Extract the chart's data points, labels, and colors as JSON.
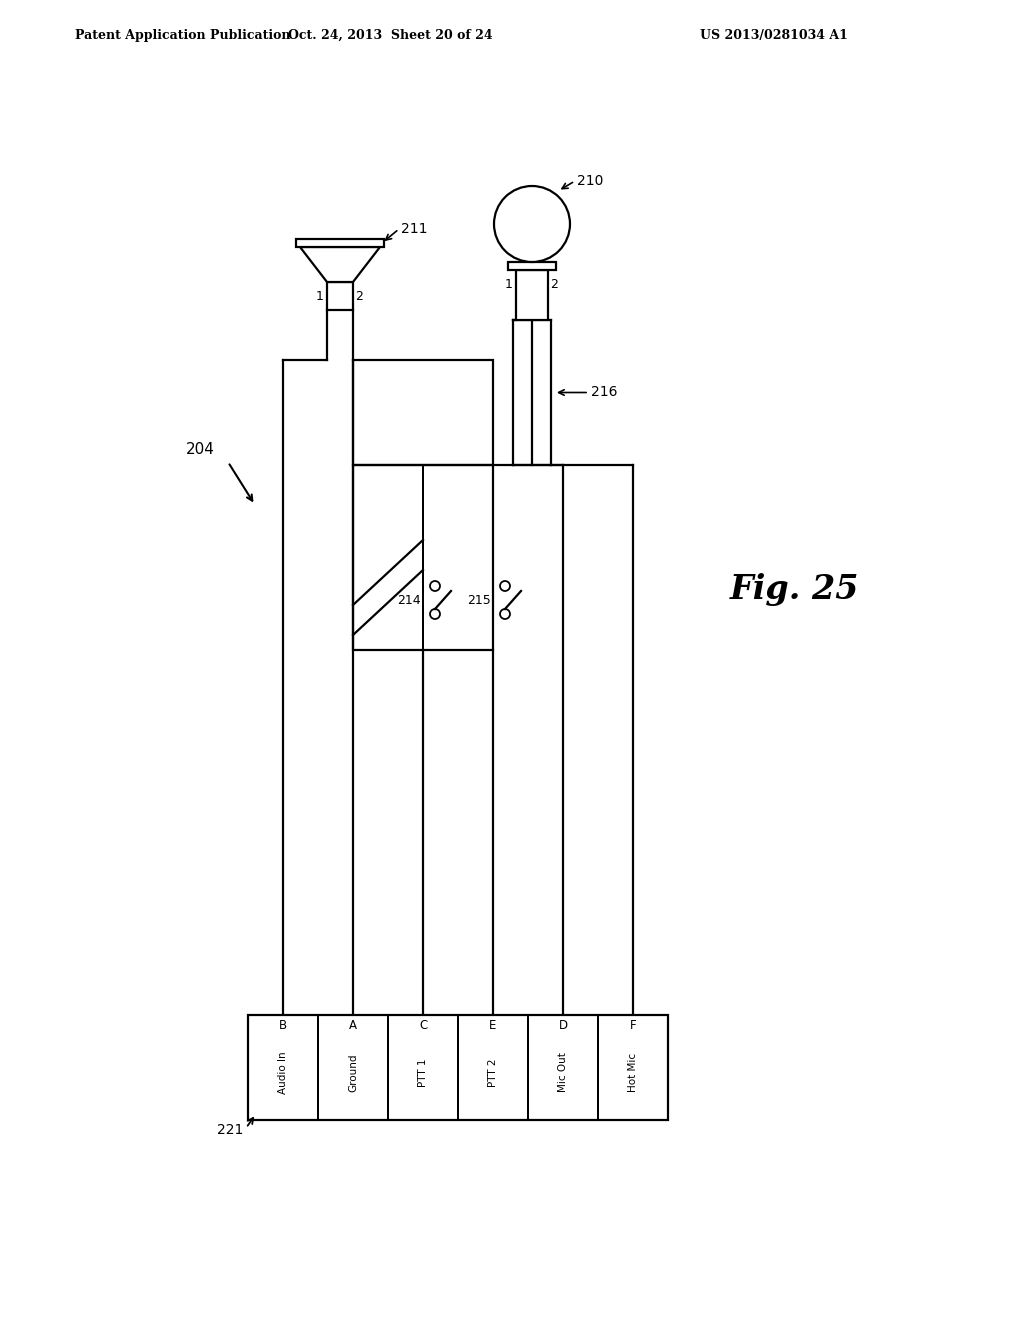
{
  "bg_color": "#ffffff",
  "header_left": "Patent Application Publication",
  "header_mid": "Oct. 24, 2013  Sheet 20 of 24",
  "header_right": "US 2013/0281034 A1",
  "fig_label": "Fig. 25",
  "ref_204": "204",
  "ref_210": "210",
  "ref_211": "211",
  "ref_214": "214",
  "ref_215": "215",
  "ref_216": "216",
  "ref_221": "221",
  "connector_labels": [
    "B",
    "A",
    "C",
    "E",
    "D",
    "F"
  ],
  "connector_texts": [
    "Audio In",
    "Ground",
    "PTT 1",
    "PTT 2",
    "Mic Out",
    "Hot Mic"
  ],
  "lw": 1.6
}
